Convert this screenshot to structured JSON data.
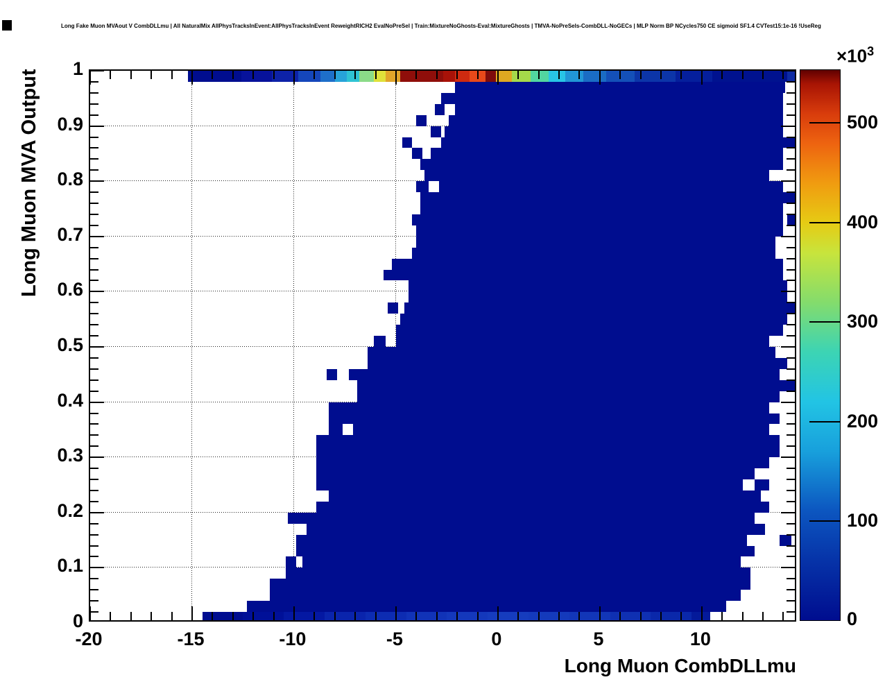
{
  "header": {
    "title": "Long Fake Muon MVAout V CombDLLmu | All NaturalMix AllPhysTracksInEvent:AllPhysTracksInEvent ReweightRICH2 EvalNoPreSel | Train:MixtureNoGhosts-Eval:MixtureGhosts | TMVA-NoPreSels-CombDLL-NoGECs | MLP Norm BP NCycles750 CE sigmoid SF1.4 CVTest15:1e-16 !UseReg"
  },
  "axes": {
    "x": {
      "label": "Long Muon CombDLLmu",
      "min": -20,
      "max": 14.7,
      "major_ticks": [
        -20,
        -15,
        -10,
        -5,
        0,
        5,
        10
      ],
      "tick_labels": [
        "-20",
        "-15",
        "-10",
        "-5",
        "0",
        "5",
        "10"
      ],
      "minor_step": 1,
      "grid_values": [
        -15,
        -10,
        -5,
        0,
        5,
        10
      ]
    },
    "y": {
      "label": "Long Muon MVA Output",
      "min": 0,
      "max": 1,
      "major_ticks": [
        0,
        0.1,
        0.2,
        0.3,
        0.4,
        0.5,
        0.6,
        0.7,
        0.8,
        0.9,
        1
      ],
      "tick_labels": [
        "0",
        "0.1",
        "0.2",
        "0.3",
        "0.4",
        "0.5",
        "0.6",
        "0.7",
        "0.8",
        "0.9",
        "1"
      ],
      "minor_step": 0.02,
      "grid_values": [
        0.1,
        0.2,
        0.3,
        0.4,
        0.5,
        0.6,
        0.7,
        0.8,
        0.9
      ]
    }
  },
  "colorbar": {
    "exponent_base": "×10",
    "exponent_power": "3",
    "max_value": 554,
    "tick_values": [
      100,
      200,
      300,
      400,
      500
    ],
    "tick_labels": [
      "100",
      "200",
      "300",
      "400",
      "500"
    ],
    "zero_label": "0"
  },
  "chart_data": {
    "type": "heatmap",
    "title": "Long Fake Muon MVAout V CombDLLmu",
    "xlabel": "Long Muon CombDLLmu",
    "ylabel": "Long Muon MVA Output",
    "x_range": [
      -20,
      14.7
    ],
    "y_range": [
      0,
      1
    ],
    "x_bin_width": 0.5,
    "y_bin_width": 0.02,
    "z_unit_exponent": 3,
    "z_max": 554000,
    "body_fill_color": "#000d8f",
    "rows": [
      [
        0.02,
        0.04,
        -12.3,
        11.2,
        [],
        []
      ],
      [
        0.04,
        0.06,
        -11.2,
        11.9,
        [],
        []
      ],
      [
        0.06,
        0.08,
        -11.2,
        12.4,
        [],
        []
      ],
      [
        0.08,
        0.1,
        -10.4,
        12.4,
        [],
        []
      ],
      [
        0.1,
        0.12,
        -9.6,
        11.9,
        [
          [
            -10.4,
            -9.9
          ]
        ],
        []
      ],
      [
        0.12,
        0.14,
        -9.9,
        12.6,
        [],
        []
      ],
      [
        0.14,
        0.16,
        -9.9,
        12.2,
        [
          [
            13.8,
            14.4
          ]
        ],
        []
      ],
      [
        0.16,
        0.18,
        -9.4,
        13.1,
        [],
        []
      ],
      [
        0.18,
        0.2,
        -10.3,
        12.6,
        [],
        []
      ],
      [
        0.2,
        0.22,
        -8.9,
        13.3,
        [],
        []
      ],
      [
        0.22,
        0.24,
        -8.3,
        12.9,
        [],
        []
      ],
      [
        0.24,
        0.26,
        -8.9,
        13.3,
        [],
        [
          [
            12.0,
            12.6
          ]
        ]
      ],
      [
        0.26,
        0.28,
        -8.9,
        12.6,
        [],
        []
      ],
      [
        0.28,
        0.3,
        -8.9,
        13.3,
        [],
        []
      ],
      [
        0.3,
        0.34,
        -8.9,
        13.8,
        [],
        []
      ],
      [
        0.34,
        0.36,
        -8.3,
        13.3,
        [],
        [
          [
            -7.6,
            -7.1
          ]
        ]
      ],
      [
        0.36,
        0.38,
        -8.3,
        13.8,
        [],
        []
      ],
      [
        0.38,
        0.4,
        -8.3,
        13.3,
        [],
        []
      ],
      [
        0.4,
        0.42,
        -6.9,
        13.8,
        [],
        []
      ],
      [
        0.42,
        0.44,
        -6.9,
        14.7,
        [],
        []
      ],
      [
        0.44,
        0.46,
        -7.3,
        13.8,
        [
          [
            -8.4,
            -7.9
          ]
        ],
        []
      ],
      [
        0.46,
        0.48,
        -6.4,
        14.2,
        [],
        []
      ],
      [
        0.48,
        0.5,
        -6.4,
        13.6,
        [],
        []
      ],
      [
        0.5,
        0.52,
        -5.0,
        13.3,
        [
          [
            -6.1,
            -5.5
          ]
        ],
        []
      ],
      [
        0.52,
        0.54,
        -5.0,
        14.0,
        [],
        []
      ],
      [
        0.54,
        0.56,
        -4.8,
        14.2,
        [],
        []
      ],
      [
        0.56,
        0.58,
        -4.6,
        14.7,
        [
          [
            -5.4,
            -4.9
          ]
        ],
        []
      ],
      [
        0.58,
        0.62,
        -4.4,
        14.2,
        [],
        []
      ],
      [
        0.62,
        0.64,
        -5.6,
        14.0,
        [],
        []
      ],
      [
        0.64,
        0.66,
        -5.2,
        14.0,
        [],
        []
      ],
      [
        0.66,
        0.68,
        -4.2,
        13.6,
        [],
        []
      ],
      [
        0.68,
        0.7,
        -4.0,
        13.6,
        [],
        []
      ],
      [
        0.7,
        0.72,
        -4.0,
        14.0,
        [],
        []
      ],
      [
        0.72,
        0.74,
        -4.2,
        14.0,
        [
          [
            14.2,
            14.7
          ]
        ],
        []
      ],
      [
        0.74,
        0.76,
        -3.8,
        14.0,
        [],
        []
      ],
      [
        0.76,
        0.78,
        -3.8,
        14.7,
        [],
        []
      ],
      [
        0.78,
        0.8,
        -4.0,
        14.0,
        [],
        [
          [
            -3.4,
            -2.9
          ]
        ]
      ],
      [
        0.8,
        0.82,
        -3.6,
        13.3,
        [],
        []
      ],
      [
        0.82,
        0.84,
        -3.8,
        14.0,
        [],
        []
      ],
      [
        0.84,
        0.86,
        -3.3,
        14.0,
        [
          [
            -4.2,
            -3.7
          ]
        ],
        []
      ],
      [
        0.86,
        0.88,
        -2.8,
        14.7,
        [
          [
            -4.7,
            -4.2
          ]
        ],
        []
      ],
      [
        0.88,
        0.9,
        -2.6,
        14.0,
        [
          [
            -3.3,
            -2.8
          ]
        ],
        []
      ],
      [
        0.9,
        0.92,
        -2.4,
        14.0,
        [
          [
            -4.0,
            -3.5
          ]
        ],
        []
      ],
      [
        0.92,
        0.94,
        -2.1,
        14.0,
        [
          [
            -3.1,
            -2.6
          ]
        ],
        []
      ],
      [
        0.94,
        0.96,
        -2.8,
        14.0,
        [],
        []
      ],
      [
        0.96,
        0.98,
        -2.1,
        14.7,
        [],
        [
          [
            14.1,
            14.6
          ]
        ]
      ]
    ],
    "top_row": {
      "y0": 0.98,
      "y1": 1.0,
      "segments": [
        [
          -15.2,
          -12.6,
          "#000d8f"
        ],
        [
          -12.6,
          -11.1,
          "#07129b"
        ],
        [
          -11.1,
          -9.8,
          "#0d22a8"
        ],
        [
          -9.8,
          -8.7,
          "#1546bb"
        ],
        [
          -8.7,
          -8.0,
          "#1e6fc9"
        ],
        [
          -8.0,
          -7.4,
          "#27a3d9"
        ],
        [
          -7.4,
          -6.8,
          "#2fc3d3"
        ],
        [
          -6.8,
          -6.1,
          "#8bdb88"
        ],
        [
          -6.1,
          -5.5,
          "#e0e13a"
        ],
        [
          -5.5,
          -4.8,
          "#e2a52a"
        ],
        [
          -4.8,
          -2.7,
          "#8f0e0a"
        ],
        [
          -2.7,
          -2.1,
          "#a81208"
        ],
        [
          -2.1,
          -1.4,
          "#cf2a10"
        ],
        [
          -1.4,
          -0.6,
          "#e8491a"
        ],
        [
          -0.6,
          -0.1,
          "#7e0c0c"
        ],
        [
          -0.1,
          0.7,
          "#dfa821"
        ],
        [
          0.7,
          1.6,
          "#a5d94a"
        ],
        [
          1.6,
          2.5,
          "#52d6a0"
        ],
        [
          2.5,
          3.3,
          "#28c5e5"
        ],
        [
          3.3,
          4.2,
          "#2196d6"
        ],
        [
          4.2,
          5.3,
          "#1a6cc4"
        ],
        [
          5.3,
          6.7,
          "#1450b8"
        ],
        [
          6.7,
          8.7,
          "#0c35a8"
        ],
        [
          8.7,
          10.5,
          "#051f9c"
        ],
        [
          10.5,
          14.2,
          "#00128f"
        ],
        [
          14.2,
          14.7,
          "#0d2ba3"
        ]
      ]
    },
    "bottom_row": {
      "y0": 0.0,
      "y1": 0.02,
      "segments": [
        [
          -14.5,
          -12.5,
          "#000d90"
        ],
        [
          -12.5,
          -10.5,
          "#001098"
        ],
        [
          -10.5,
          -8.5,
          "#0418a2"
        ],
        [
          -8.5,
          -6.5,
          "#0a24ac"
        ],
        [
          -6.5,
          -4.5,
          "#0d2cb2"
        ],
        [
          -4.5,
          -2.5,
          "#1133b8"
        ],
        [
          -2.5,
          -0.5,
          "#1438bc"
        ],
        [
          -0.5,
          1.5,
          "#163cbe"
        ],
        [
          1.5,
          3.5,
          "#143abc"
        ],
        [
          3.5,
          5.5,
          "#1236b8"
        ],
        [
          5.5,
          7.5,
          "#0f30b2"
        ],
        [
          7.5,
          9.5,
          "#0a28aa"
        ],
        [
          9.5,
          10.4,
          "#041a9a"
        ]
      ]
    }
  }
}
